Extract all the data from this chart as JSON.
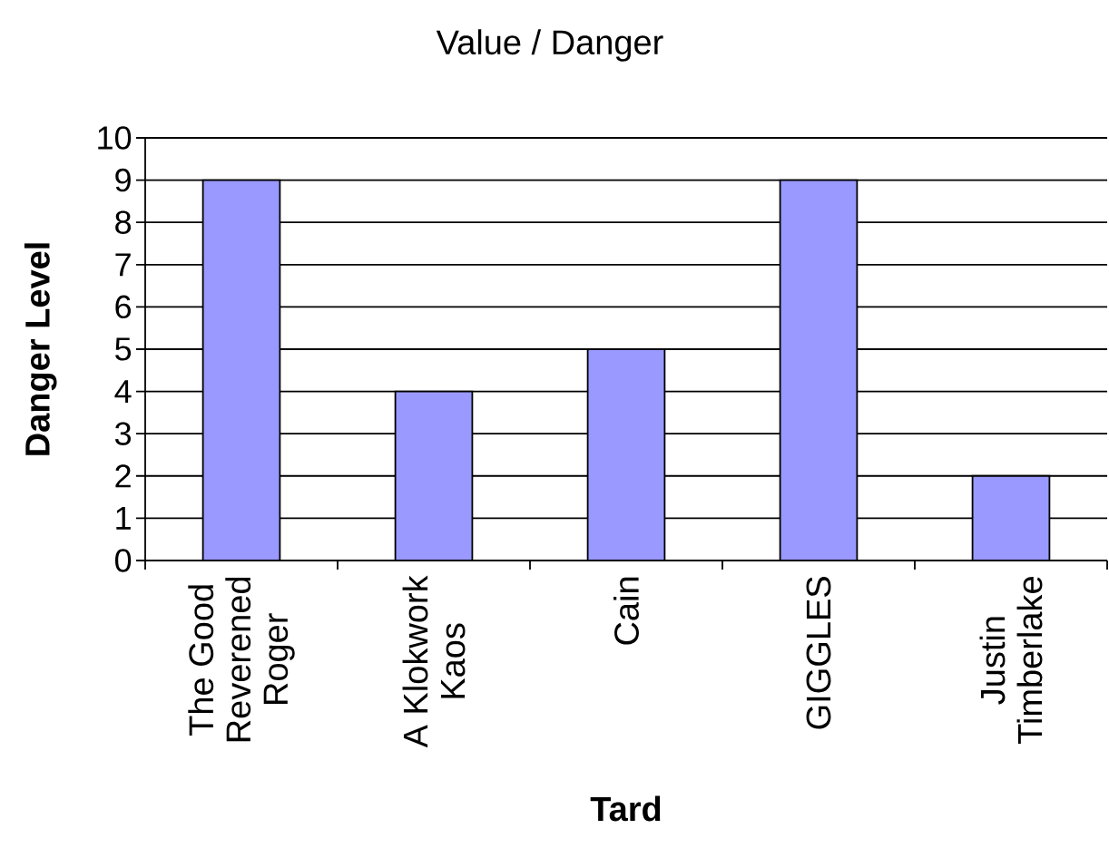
{
  "chart_data": {
    "type": "bar",
    "title": "Value / Danger",
    "xlabel": "Tard",
    "ylabel": "Danger Level",
    "categories": [
      "The Good Reverened Roger",
      "A Klokwork Kaos",
      "Cain",
      "GIGGLES",
      "Justin Timberlake"
    ],
    "values": [
      9,
      4,
      5,
      9,
      2
    ],
    "color": "#9999ff",
    "ylim": [
      0,
      10
    ],
    "yticks": [
      0,
      1,
      2,
      3,
      4,
      5,
      6,
      7,
      8,
      9,
      10
    ],
    "grid": "y"
  }
}
